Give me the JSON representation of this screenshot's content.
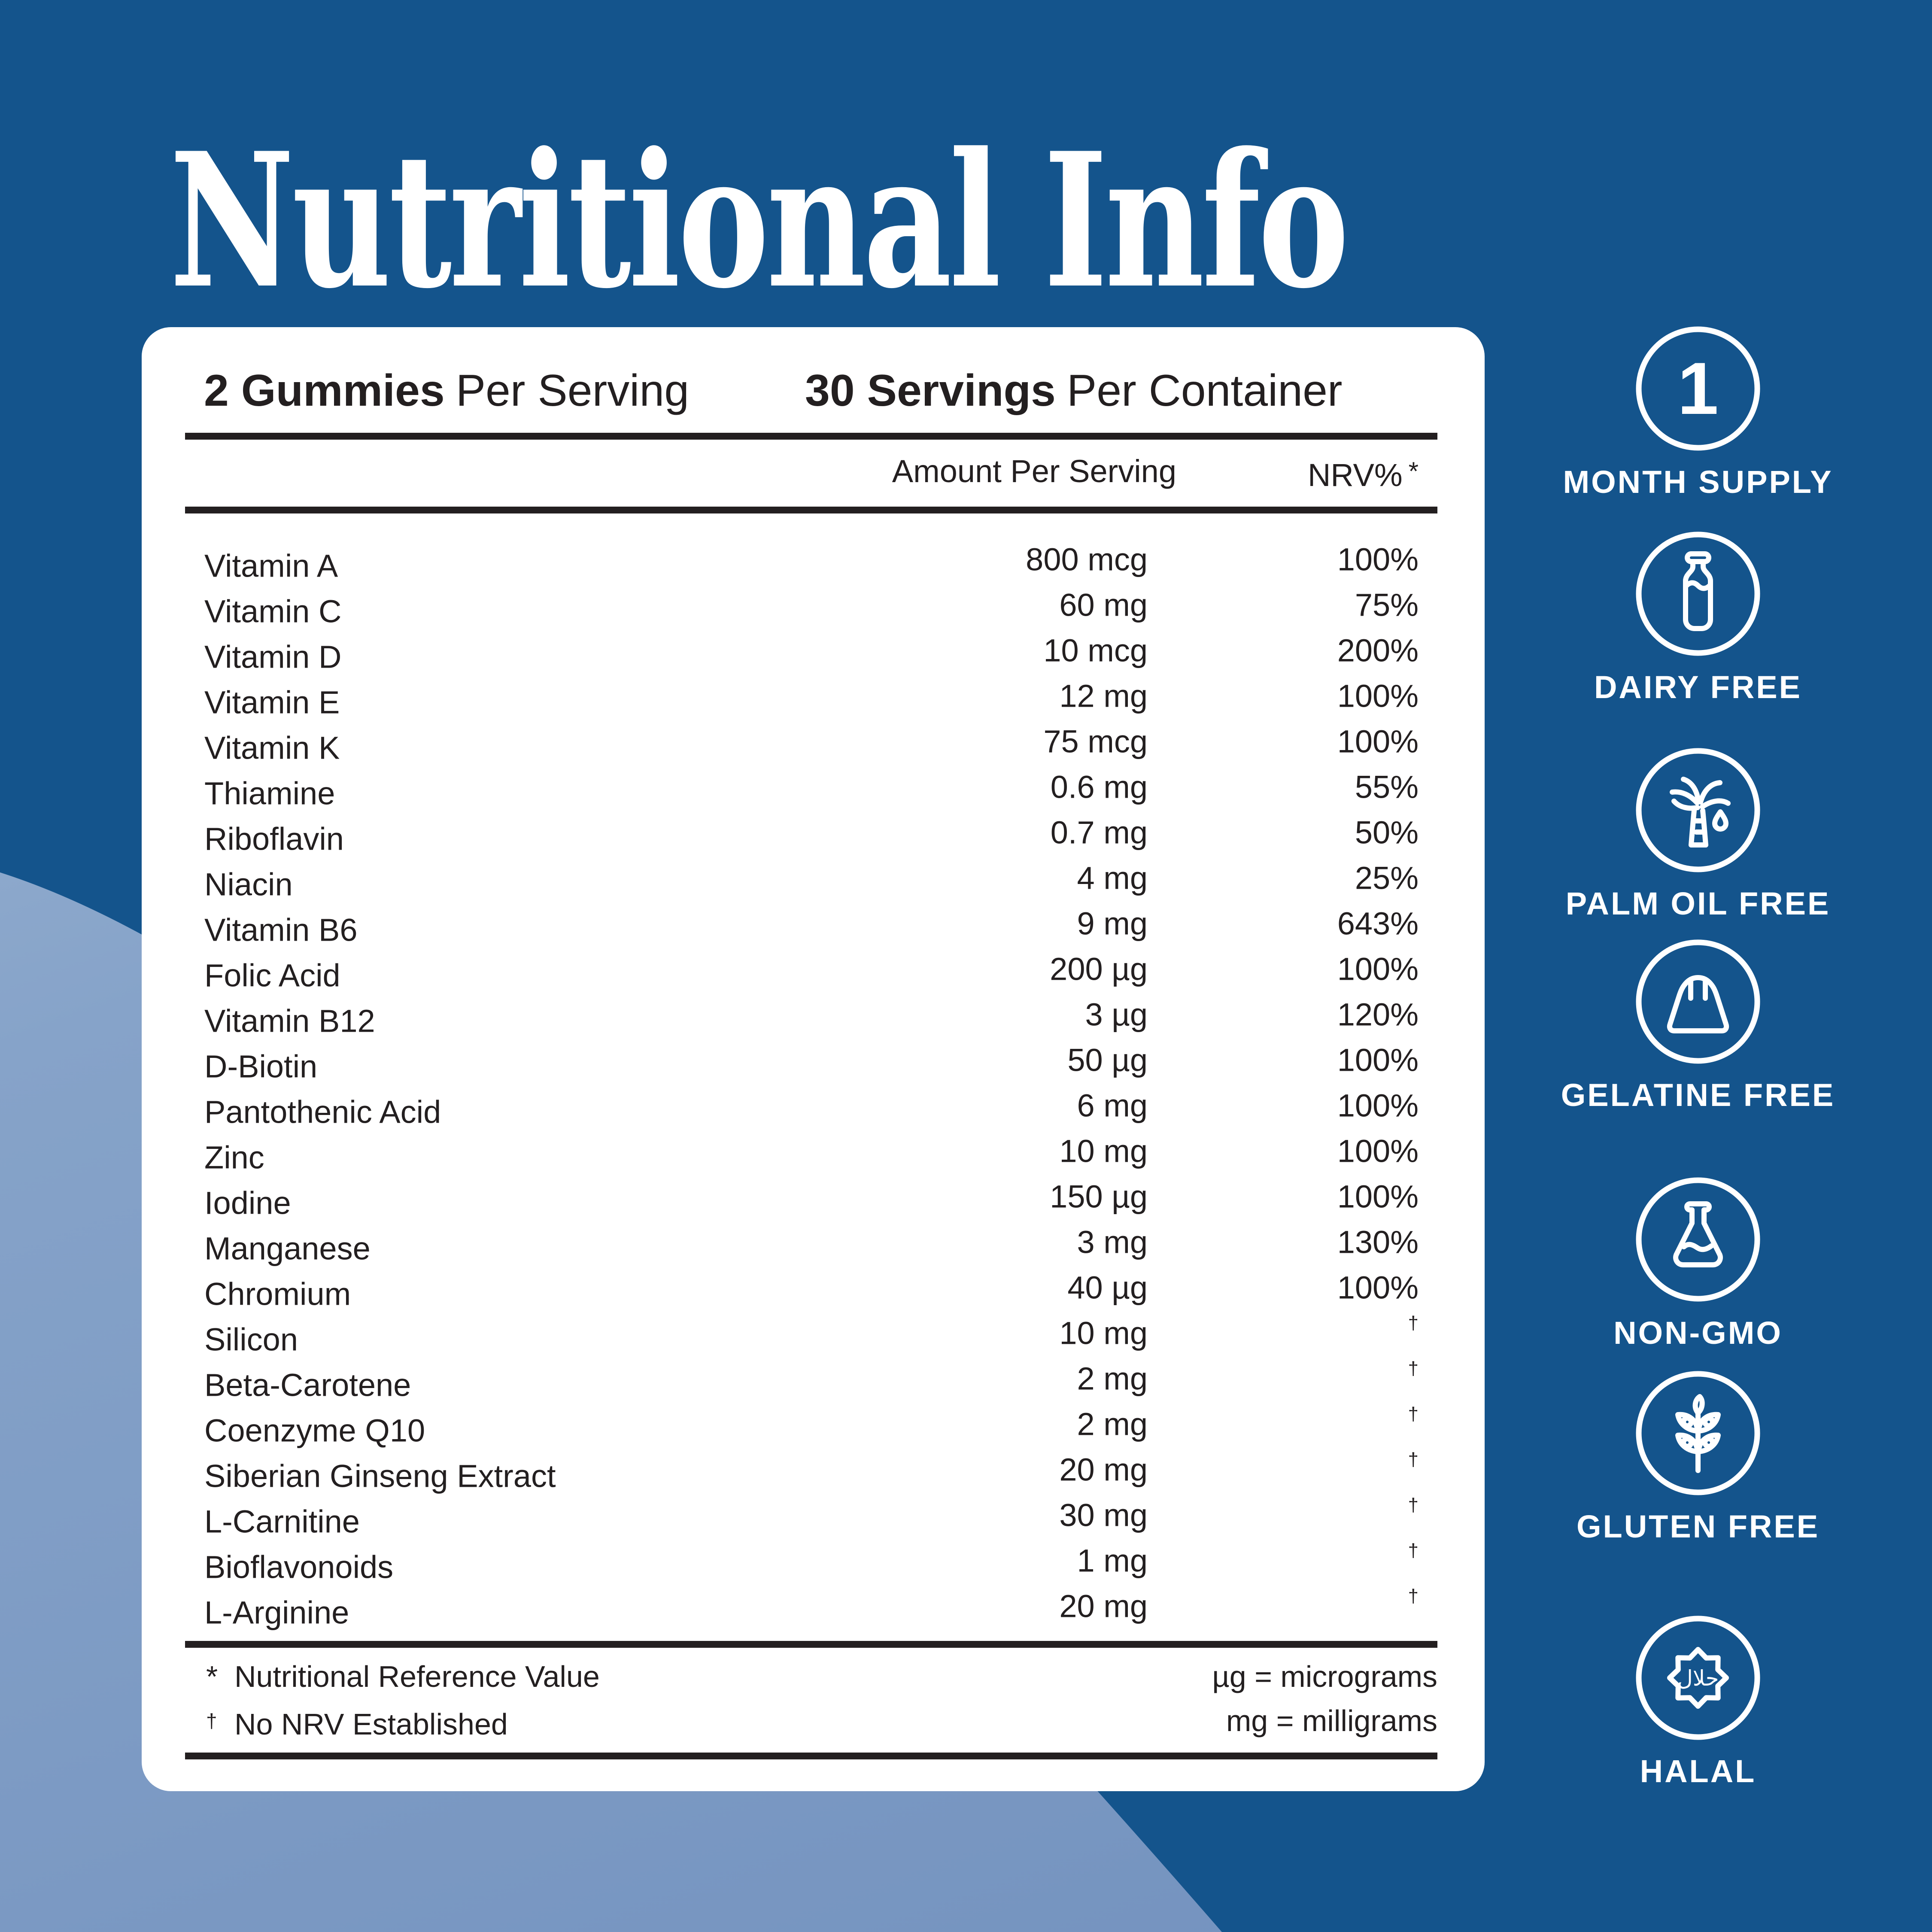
{
  "colors": {
    "background": "#14548C",
    "shape_light": "#86A3C9",
    "card": "#FFFFFF",
    "ink": "#231F20",
    "white": "#FFFFFF"
  },
  "title": "Nutritional Info",
  "card": {
    "serving": {
      "qty": "2 Gummies",
      "qty_label": "Per Serving",
      "count": "30 Servings",
      "count_label": "Per Container"
    },
    "columns": {
      "amount": "Amount Per Serving",
      "nrv": "NRV%",
      "nrv_mark": "*"
    },
    "rows": [
      {
        "name": "Vitamin A",
        "amount": "800 mcg",
        "nrv": "100%"
      },
      {
        "name": "Vitamin C",
        "amount": "60 mg",
        "nrv": "75%"
      },
      {
        "name": "Vitamin D",
        "amount": "10 mcg",
        "nrv": "200%"
      },
      {
        "name": "Vitamin E",
        "amount": "12 mg",
        "nrv": "100%"
      },
      {
        "name": "Vitamin K",
        "amount": "75 mcg",
        "nrv": "100%"
      },
      {
        "name": "Thiamine",
        "amount": "0.6 mg",
        "nrv": "55%"
      },
      {
        "name": "Riboflavin",
        "amount": "0.7 mg",
        "nrv": "50%"
      },
      {
        "name": "Niacin",
        "amount": "4 mg",
        "nrv": "25%"
      },
      {
        "name": "Vitamin B6",
        "amount": "9 mg",
        "nrv": "643%"
      },
      {
        "name": "Folic Acid",
        "amount": "200 µg",
        "nrv": "100%"
      },
      {
        "name": "Vitamin B12",
        "amount": "3 µg",
        "nrv": "120%"
      },
      {
        "name": "D-Biotin",
        "amount": "50 µg",
        "nrv": "100%"
      },
      {
        "name": "Pantothenic Acid",
        "amount": "6 mg",
        "nrv": "100%"
      },
      {
        "name": "Zinc",
        "amount": "10 mg",
        "nrv": "100%"
      },
      {
        "name": "Iodine",
        "amount": "150 µg",
        "nrv": "100%"
      },
      {
        "name": "Manganese",
        "amount": "3 mg",
        "nrv": "130%"
      },
      {
        "name": "Chromium",
        "amount": "40 µg",
        "nrv": "100%"
      },
      {
        "name": "Silicon",
        "amount": "10 mg",
        "nrv": "†"
      },
      {
        "name": "Beta-Carotene",
        "amount": "2 mg",
        "nrv": "†"
      },
      {
        "name": "Coenzyme Q10",
        "amount": "2 mg",
        "nrv": "†"
      },
      {
        "name": "Siberian Ginseng Extract",
        "amount": "20 mg",
        "nrv": "†"
      },
      {
        "name": "L-Carnitine",
        "amount": "30 mg",
        "nrv": "†"
      },
      {
        "name": "Bioflavonoids",
        "amount": "1 mg",
        "nrv": "†"
      },
      {
        "name": "L-Arginine",
        "amount": "20 mg",
        "nrv": "†"
      }
    ],
    "footnotes": {
      "ref_mark": "*",
      "ref_text": "Nutritional Reference Value",
      "nrv_mark": "†",
      "nrv_text": "No NRV Established",
      "micrograms": "µg = micrograms",
      "milligrams": "mg = milligrams"
    }
  },
  "badges": [
    {
      "icon": "one-icon",
      "value": "1",
      "label": "MONTH SUPPLY"
    },
    {
      "icon": "milk-bottle-icon",
      "label": "DAIRY FREE"
    },
    {
      "icon": "palm-tree-icon",
      "label": "PALM OIL FREE"
    },
    {
      "icon": "jelly-icon",
      "label": "GELATINE FREE"
    },
    {
      "icon": "flask-icon",
      "label": "NON-GMO"
    },
    {
      "icon": "plant-icon",
      "label": "GLUTEN FREE"
    },
    {
      "icon": "halal-badge-icon",
      "value": "حلال",
      "label": "HALAL"
    }
  ]
}
